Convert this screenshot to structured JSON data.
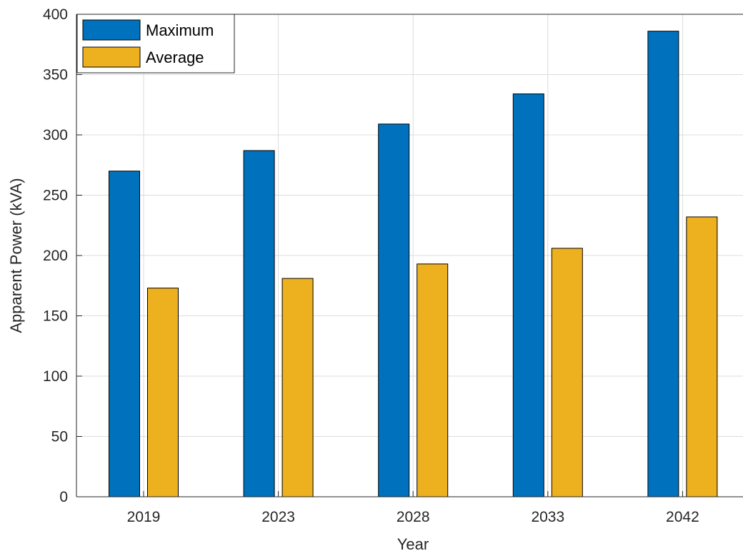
{
  "chart_data": {
    "type": "bar",
    "title": "",
    "xlabel": "Year",
    "ylabel": "Apparent Power (kVA)",
    "categories": [
      "2019",
      "2023",
      "2028",
      "2033",
      "2042"
    ],
    "series": [
      {
        "name": "Maximum",
        "values": [
          270,
          287,
          309,
          334,
          386
        ],
        "color": "#0072BD"
      },
      {
        "name": "Average",
        "values": [
          173,
          181,
          193,
          206,
          232
        ],
        "color": "#EDB120"
      }
    ],
    "ylim": [
      0,
      400
    ],
    "yticks": [
      0,
      50,
      100,
      150,
      200,
      250,
      300,
      350,
      400
    ],
    "grid": true,
    "legend_position": "top-left"
  }
}
